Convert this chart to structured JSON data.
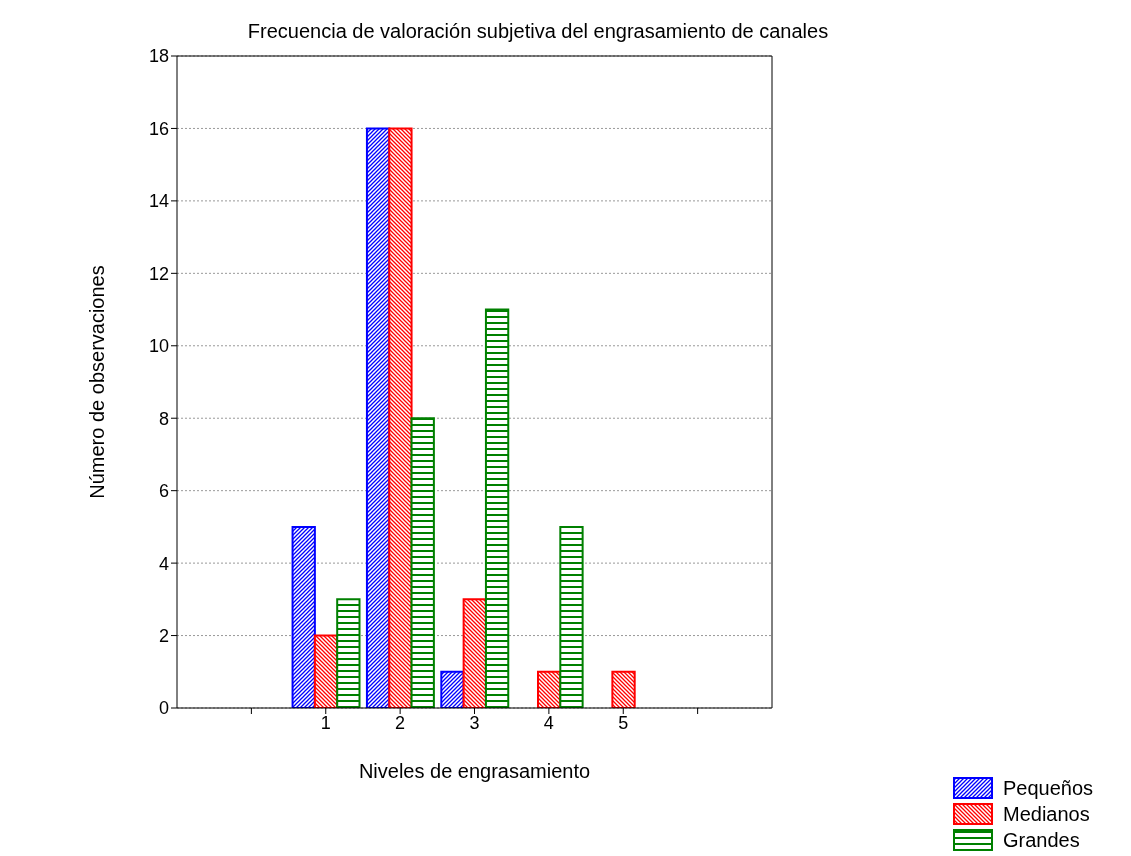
{
  "chart_data": {
    "type": "bar",
    "title": "Frecuencia de valoración subjetiva del engrasamiento de canales",
    "xlabel": "Niveles de engrasamiento",
    "ylabel": "Número de observaciones",
    "x": [
      1,
      2,
      3,
      4,
      5
    ],
    "xlim": [
      -1,
      7
    ],
    "xticks": [
      {
        "value": 0,
        "label": null
      },
      1,
      2,
      3,
      4,
      5,
      {
        "value": 6,
        "label": null
      }
    ],
    "ylim": [
      0,
      18
    ],
    "yticks": [
      0,
      2,
      4,
      6,
      8,
      10,
      12,
      14,
      16,
      18
    ],
    "series": [
      {
        "name": "Pequeños",
        "color": "#0000ff",
        "values": [
          5,
          16,
          1,
          0,
          0
        ]
      },
      {
        "name": "Medianos",
        "color": "#ff0000",
        "values": [
          2,
          16,
          3,
          1,
          1
        ]
      },
      {
        "name": "Grandes",
        "color": "#008000",
        "values": [
          3,
          8,
          11,
          5,
          0
        ]
      }
    ],
    "grid": "y",
    "legend": "bottom right"
  }
}
